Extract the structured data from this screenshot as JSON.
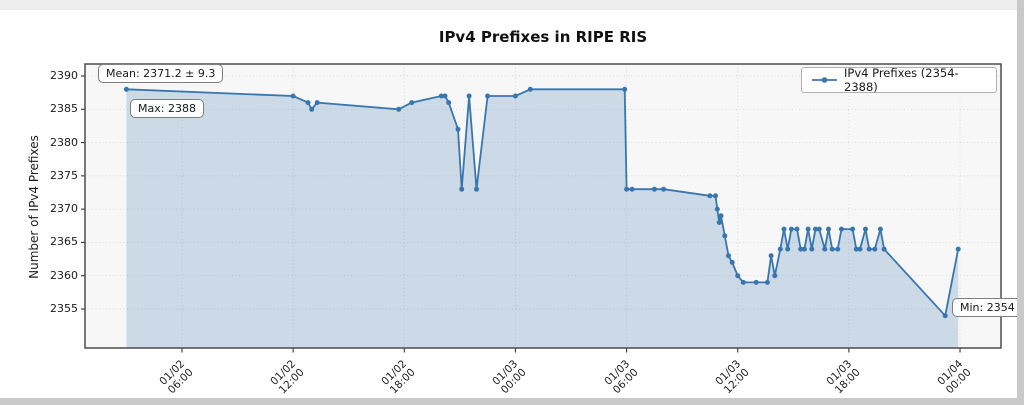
{
  "chart_data": {
    "type": "line",
    "title": "IPv4 Prefixes in RIPE RIS",
    "ylabel": "Number of IPv4 Prefixes",
    "series_name": "IPv4 Prefixes (2354-2388)",
    "line_color": "#3a76ae",
    "fill_color": "rgba(70,130,180,0.25)",
    "grid": true,
    "legend_position": "upper right",
    "ylim": [
      2349,
      2392
    ],
    "y_ticks": [
      2355,
      2360,
      2365,
      2370,
      2375,
      2380,
      2385,
      2390
    ],
    "x_ticks": [
      {
        "t": 6,
        "date": "01/02",
        "time": "06:00"
      },
      {
        "t": 12,
        "date": "01/02",
        "time": "12:00"
      },
      {
        "t": 18,
        "date": "01/02",
        "time": "18:00"
      },
      {
        "t": 24,
        "date": "01/03",
        "time": "00:00"
      },
      {
        "t": 30,
        "date": "01/03",
        "time": "06:00"
      },
      {
        "t": 36,
        "date": "01/03",
        "time": "12:00"
      },
      {
        "t": 42,
        "date": "01/03",
        "time": "18:00"
      },
      {
        "t": 48,
        "date": "01/04",
        "time": "00:00"
      }
    ],
    "x_unit": "hours since 01/02 00:00",
    "points": [
      [
        3.0,
        2388
      ],
      [
        12.0,
        2387
      ],
      [
        12.8,
        2386
      ],
      [
        13.0,
        2385
      ],
      [
        13.3,
        2386
      ],
      [
        17.7,
        2385
      ],
      [
        18.4,
        2386
      ],
      [
        20.0,
        2387
      ],
      [
        20.2,
        2387
      ],
      [
        20.4,
        2386
      ],
      [
        20.9,
        2382
      ],
      [
        21.1,
        2373
      ],
      [
        21.5,
        2387
      ],
      [
        21.9,
        2373
      ],
      [
        22.5,
        2387
      ],
      [
        24.0,
        2387
      ],
      [
        24.8,
        2388
      ],
      [
        29.9,
        2388
      ],
      [
        30.0,
        2373
      ],
      [
        30.3,
        2373
      ],
      [
        31.5,
        2373
      ],
      [
        32.0,
        2373
      ],
      [
        34.5,
        2372
      ],
      [
        34.8,
        2372
      ],
      [
        34.9,
        2370
      ],
      [
        35.0,
        2368
      ],
      [
        35.1,
        2369
      ],
      [
        35.3,
        2366
      ],
      [
        35.5,
        2363
      ],
      [
        35.7,
        2362
      ],
      [
        36.0,
        2360
      ],
      [
        36.3,
        2359
      ],
      [
        37.0,
        2359
      ],
      [
        37.6,
        2359
      ],
      [
        37.8,
        2363
      ],
      [
        38.0,
        2360
      ],
      [
        38.3,
        2364
      ],
      [
        38.5,
        2367
      ],
      [
        38.7,
        2364
      ],
      [
        38.9,
        2367
      ],
      [
        39.2,
        2367
      ],
      [
        39.4,
        2364
      ],
      [
        39.6,
        2364
      ],
      [
        39.8,
        2367
      ],
      [
        40.0,
        2364
      ],
      [
        40.2,
        2367
      ],
      [
        40.4,
        2367
      ],
      [
        40.7,
        2364
      ],
      [
        40.9,
        2367
      ],
      [
        41.1,
        2364
      ],
      [
        41.4,
        2364
      ],
      [
        41.6,
        2367
      ],
      [
        42.2,
        2367
      ],
      [
        42.4,
        2364
      ],
      [
        42.6,
        2364
      ],
      [
        42.9,
        2367
      ],
      [
        43.1,
        2364
      ],
      [
        43.4,
        2364
      ],
      [
        43.7,
        2367
      ],
      [
        43.9,
        2364
      ],
      [
        47.2,
        2354
      ],
      [
        47.9,
        2364
      ]
    ],
    "annotations": {
      "mean": "Mean: 2371.2 ± 9.3",
      "max": "Max: 2388",
      "min": "Min: 2354"
    },
    "stats": {
      "mean": 2371.2,
      "std": 9.3,
      "max": 2388,
      "min": 2354
    }
  }
}
